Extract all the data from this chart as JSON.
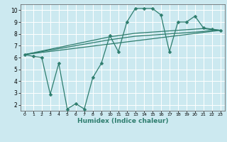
{
  "xlabel": "Humidex (Indice chaleur)",
  "bg_color": "#cce9f0",
  "grid_color": "#ffffff",
  "line_color": "#2e7d6e",
  "xlim": [
    -0.5,
    23.5
  ],
  "ylim": [
    1.5,
    10.5
  ],
  "xticks": [
    0,
    1,
    2,
    3,
    4,
    5,
    6,
    7,
    8,
    9,
    10,
    11,
    12,
    13,
    14,
    15,
    16,
    17,
    18,
    19,
    20,
    21,
    22,
    23
  ],
  "yticks": [
    2,
    3,
    4,
    5,
    6,
    7,
    8,
    9,
    10
  ],
  "curve1_x": [
    0,
    1,
    2,
    3,
    4,
    5,
    6,
    7,
    8,
    9,
    10,
    11,
    12,
    13,
    14,
    15,
    16,
    17,
    18,
    19,
    20,
    21,
    22,
    23
  ],
  "curve1_y": [
    6.25,
    6.1,
    6.0,
    2.9,
    5.5,
    1.65,
    2.1,
    1.65,
    4.3,
    5.5,
    7.85,
    6.5,
    9.0,
    10.15,
    10.15,
    10.15,
    9.6,
    6.5,
    9.0,
    9.0,
    9.5,
    8.5,
    8.4,
    8.3
  ],
  "curve2_x": [
    0,
    23
  ],
  "curve2_y": [
    6.25,
    8.3
  ],
  "curve3_x": [
    0,
    10,
    11,
    12,
    13,
    14,
    15,
    16,
    17,
    18,
    19,
    20,
    21,
    22,
    23
  ],
  "curve3_y": [
    6.25,
    7.75,
    7.85,
    7.95,
    8.05,
    8.1,
    8.15,
    8.2,
    8.25,
    8.3,
    8.35,
    8.4,
    8.45,
    8.35,
    8.3
  ],
  "curve4_x": [
    0,
    10,
    11,
    12,
    13,
    14,
    15,
    16,
    17,
    18,
    19,
    20,
    21,
    22,
    23
  ],
  "curve4_y": [
    6.25,
    7.5,
    7.6,
    7.7,
    7.8,
    7.85,
    7.9,
    7.95,
    8.0,
    8.05,
    8.1,
    8.15,
    8.2,
    8.3,
    8.3
  ]
}
